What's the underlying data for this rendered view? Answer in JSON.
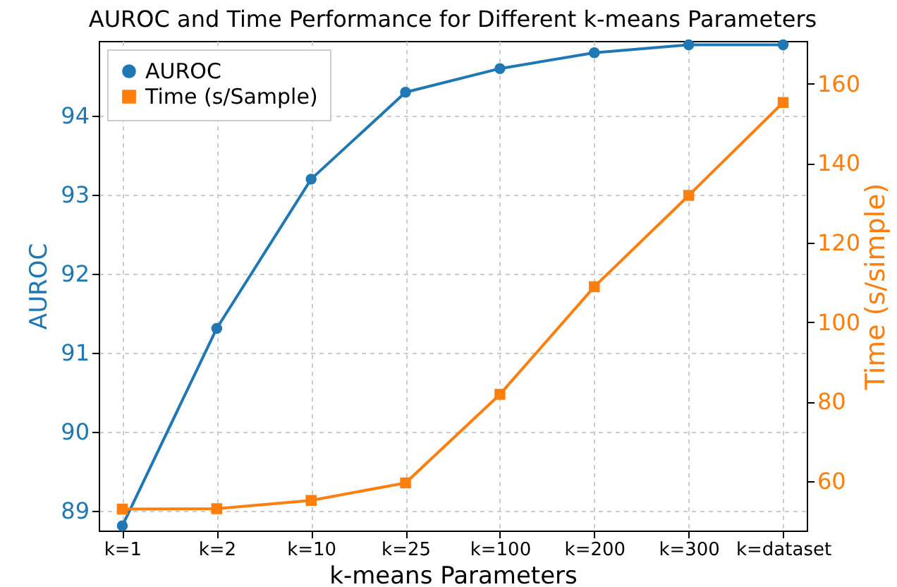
{
  "chart_data": {
    "type": "line",
    "title": "AUROC and Time Performance for Different k-means Parameters",
    "xlabel": "k-means Parameters",
    "ylabel": "AUROC",
    "y2label": "Time (s/simple)",
    "categories": [
      "k=1",
      "k=2",
      "k=10",
      "k=25",
      "k=100",
      "k=200",
      "k=300",
      "k=dataset"
    ],
    "series": [
      {
        "name": "AUROC",
        "color": "#1f77b4",
        "marker": "circle",
        "values": [
          88.81,
          91.31,
          93.2,
          94.3,
          94.6,
          94.8,
          94.9,
          94.9
        ]
      },
      {
        "name": "Time (s/Sample)",
        "color": "#ff7f0e",
        "marker": "square",
        "axis": "y2",
        "values": [
          52.9,
          53.0,
          55.1,
          59.5,
          81.8,
          108.9,
          131.9,
          155.3
        ]
      }
    ],
    "ylim": [
      88.75,
      94.95
    ],
    "yticks": [
      89,
      90,
      91,
      92,
      93,
      94
    ],
    "y2lim": [
      47.5,
      170.8
    ],
    "y2ticks": [
      60,
      80,
      100,
      120,
      140,
      160
    ],
    "grid": true,
    "legend": "top left"
  }
}
